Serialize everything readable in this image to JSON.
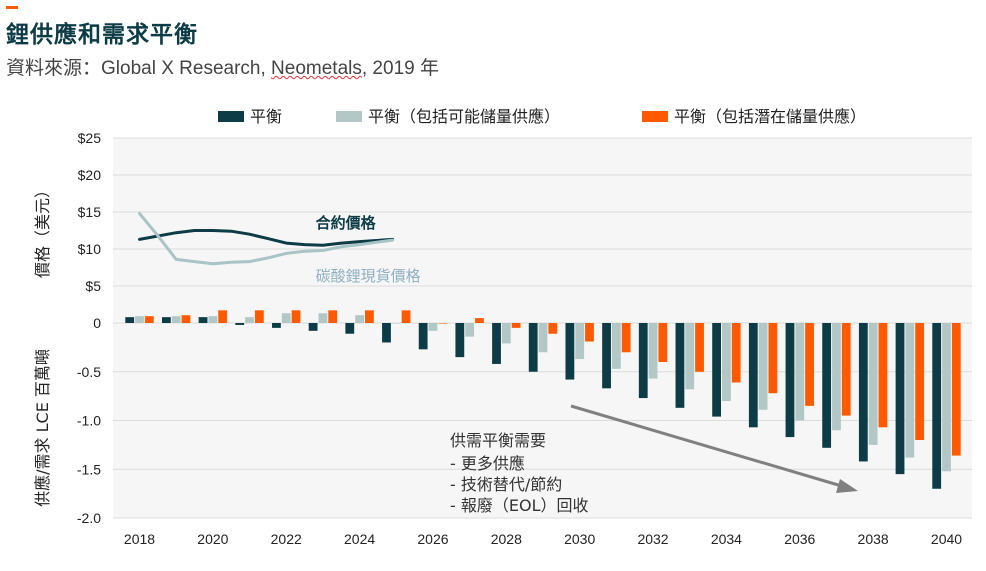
{
  "title": "鋰供應和需求平衡",
  "subtitle": {
    "prefix": "資料來源：",
    "part1": "Global X Research, ",
    "part2": "Neometals",
    "part3": ", 2019 年"
  },
  "chart_data": {
    "type": "bar",
    "years": [
      2018,
      2019,
      2020,
      2021,
      2022,
      2023,
      2024,
      2025,
      2026,
      2027,
      2028,
      2029,
      2030,
      2031,
      2032,
      2033,
      2034,
      2035,
      2036,
      2037,
      2038,
      2039,
      2040
    ],
    "x_tick_labels": [
      "2018",
      "2020",
      "2022",
      "2024",
      "2026",
      "2028",
      "2030",
      "2032",
      "2034",
      "2036",
      "2038",
      "2040"
    ],
    "legend": [
      {
        "name": "平衡",
        "color": "#0d3b46"
      },
      {
        "name": "平衡（包括可能儲量供應）",
        "color": "#b3c7c7"
      },
      {
        "name": "平衡（包括潛在儲量供應）",
        "color": "#ff5a00"
      }
    ],
    "series": [
      {
        "name": "平衡",
        "color": "#0d3b46",
        "values": [
          0.06,
          0.06,
          0.06,
          -0.02,
          -0.05,
          -0.08,
          -0.11,
          -0.2,
          -0.27,
          -0.35,
          -0.42,
          -0.5,
          -0.58,
          -0.67,
          -0.77,
          -0.87,
          -0.96,
          -1.07,
          -1.17,
          -1.28,
          -1.42,
          -1.55,
          -1.7
        ]
      },
      {
        "name": "平衡（包括可能儲量供應）",
        "color": "#b3c7c7",
        "values": [
          0.07,
          0.07,
          0.07,
          0.06,
          0.1,
          0.1,
          0.08,
          0.0,
          -0.08,
          -0.14,
          -0.21,
          -0.3,
          -0.37,
          -0.47,
          -0.57,
          -0.68,
          -0.8,
          -0.89,
          -1.0,
          -1.1,
          -1.25,
          -1.38,
          -1.52
        ]
      },
      {
        "name": "平衡（包括潛在儲量供應）",
        "color": "#ff5a00",
        "values": [
          0.07,
          0.08,
          0.13,
          0.13,
          0.13,
          0.13,
          0.13,
          0.13,
          0.0,
          0.05,
          -0.05,
          -0.11,
          -0.19,
          -0.3,
          -0.4,
          -0.5,
          -0.61,
          -0.72,
          -0.85,
          -0.95,
          -1.07,
          -1.2,
          -1.36
        ]
      }
    ],
    "bottom_axis": {
      "label": "供應/需求 LCE 百萬噸",
      "ticks": [
        "0",
        "-0.5",
        "-1.0",
        "-1.5",
        "-2.0"
      ],
      "range": [
        -2.0,
        0
      ]
    },
    "top_axis": {
      "label": "價格（美元）",
      "ticks": [
        "$25",
        "$20",
        "$15",
        "$10",
        "$5"
      ],
      "range": [
        0,
        25
      ]
    },
    "price_lines": [
      {
        "name": "合約價格",
        "color": "#0d3b46",
        "points": [
          [
            2018,
            11.3
          ],
          [
            2019,
            12.2
          ],
          [
            2019.5,
            12.5
          ],
          [
            2020,
            12.5
          ],
          [
            2020.5,
            12.4
          ],
          [
            2021,
            12.0
          ],
          [
            2021.5,
            11.4
          ],
          [
            2022,
            10.8
          ],
          [
            2022.5,
            10.6
          ],
          [
            2023,
            10.5
          ],
          [
            2023.5,
            10.8
          ],
          [
            2024,
            11.0
          ],
          [
            2024.9,
            11.3
          ]
        ]
      },
      {
        "name": "碳酸鋰現貨價格",
        "color": "#a9c4c6",
        "points": [
          [
            2018,
            14.8
          ],
          [
            2018.5,
            11.8
          ],
          [
            2019,
            8.6
          ],
          [
            2019.5,
            8.3
          ],
          [
            2020,
            8.0
          ],
          [
            2020.5,
            8.2
          ],
          [
            2021,
            8.3
          ],
          [
            2021.5,
            8.8
          ],
          [
            2022,
            9.4
          ],
          [
            2022.5,
            9.7
          ],
          [
            2023,
            9.8
          ],
          [
            2023.5,
            10.3
          ],
          [
            2024,
            10.6
          ],
          [
            2024.9,
            11.2
          ]
        ]
      }
    ],
    "price_labels": {
      "contract": "合約價格",
      "spot": "碳酸鋰現貨價格"
    },
    "annotation": {
      "heading": "供需平衡需要",
      "items": [
        "- 更多供應",
        "- 技術替代/節約",
        "- 報廢（EOL）回收"
      ]
    }
  }
}
